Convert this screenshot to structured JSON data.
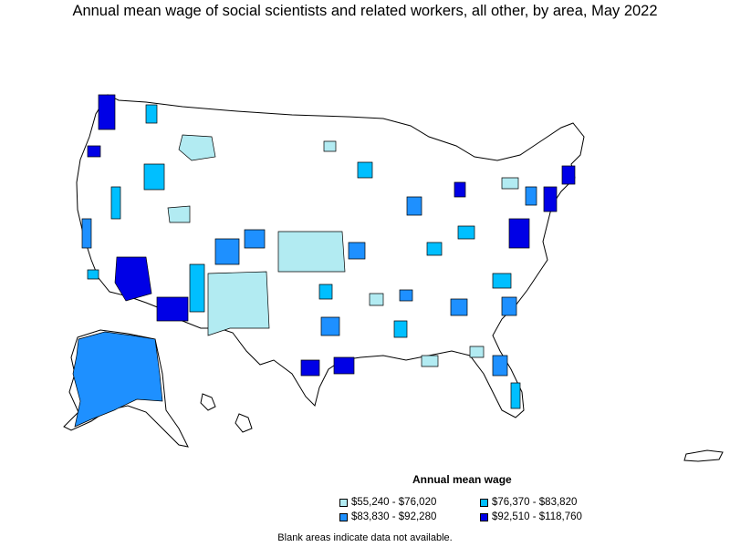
{
  "title": "Annual mean wage of social scientists and related workers, all other, by area, May 2022",
  "legend": {
    "title": "Annual mean wage",
    "items": [
      {
        "label": "$55,240 - $76,020",
        "color": "#b2ebf2"
      },
      {
        "label": "$76,370 - $83,820",
        "color": "#00bfff"
      },
      {
        "label": "$83,830 - $92,280",
        "color": "#1e90ff"
      },
      {
        "label": "$92,510 - $118,760",
        "color": "#0000e6"
      }
    ]
  },
  "note": "Blank areas indicate data not available."
}
